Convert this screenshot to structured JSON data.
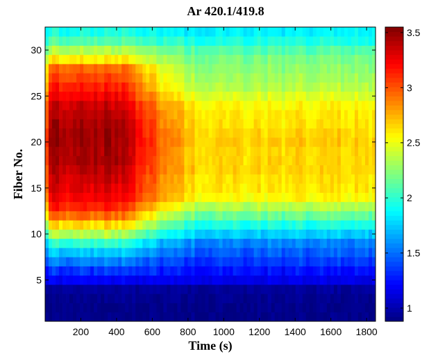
{
  "chart_data": {
    "type": "heatmap",
    "title": "Ar 420.1/419.8",
    "xlabel": "Time (s)",
    "ylabel": "Fiber No.",
    "xlim": [
      0,
      1850
    ],
    "ylim": [
      0.5,
      32.5
    ],
    "x_ticks": [
      "200",
      "400",
      "600",
      "800",
      "1000",
      "1200",
      "1400",
      "1600",
      "1800"
    ],
    "y_ticks": [
      "5",
      "10",
      "15",
      "20",
      "25",
      "30"
    ],
    "colorbar": {
      "colormap": "jet",
      "range": [
        0.88,
        3.55
      ],
      "ticks": [
        "1",
        "1.5",
        "2",
        "2.5",
        "3",
        "3.5"
      ]
    },
    "fibers": [
      1,
      32
    ],
    "time_range": [
      0,
      1850
    ],
    "fiber_profile_late": [
      0.9,
      0.9,
      0.92,
      0.95,
      1.15,
      1.25,
      1.35,
      1.45,
      1.55,
      1.75,
      1.95,
      2.15,
      2.35,
      2.55,
      2.6,
      2.62,
      2.65,
      2.65,
      2.65,
      2.68,
      2.65,
      2.62,
      2.6,
      2.55,
      2.45,
      2.35,
      2.3,
      2.25,
      2.2,
      2.1,
      1.95,
      1.85
    ],
    "fiber_profile_early_peak": [
      0.9,
      0.9,
      0.92,
      0.95,
      1.2,
      1.35,
      1.55,
      1.75,
      2.0,
      2.35,
      2.65,
      2.95,
      3.15,
      3.25,
      3.3,
      3.35,
      3.4,
      3.45,
      3.45,
      3.48,
      3.48,
      3.45,
      3.4,
      3.35,
      3.25,
      3.15,
      3.05,
      2.95,
      2.6,
      2.35,
      2.1,
      1.95
    ],
    "early_phase_end_s": 680
  }
}
